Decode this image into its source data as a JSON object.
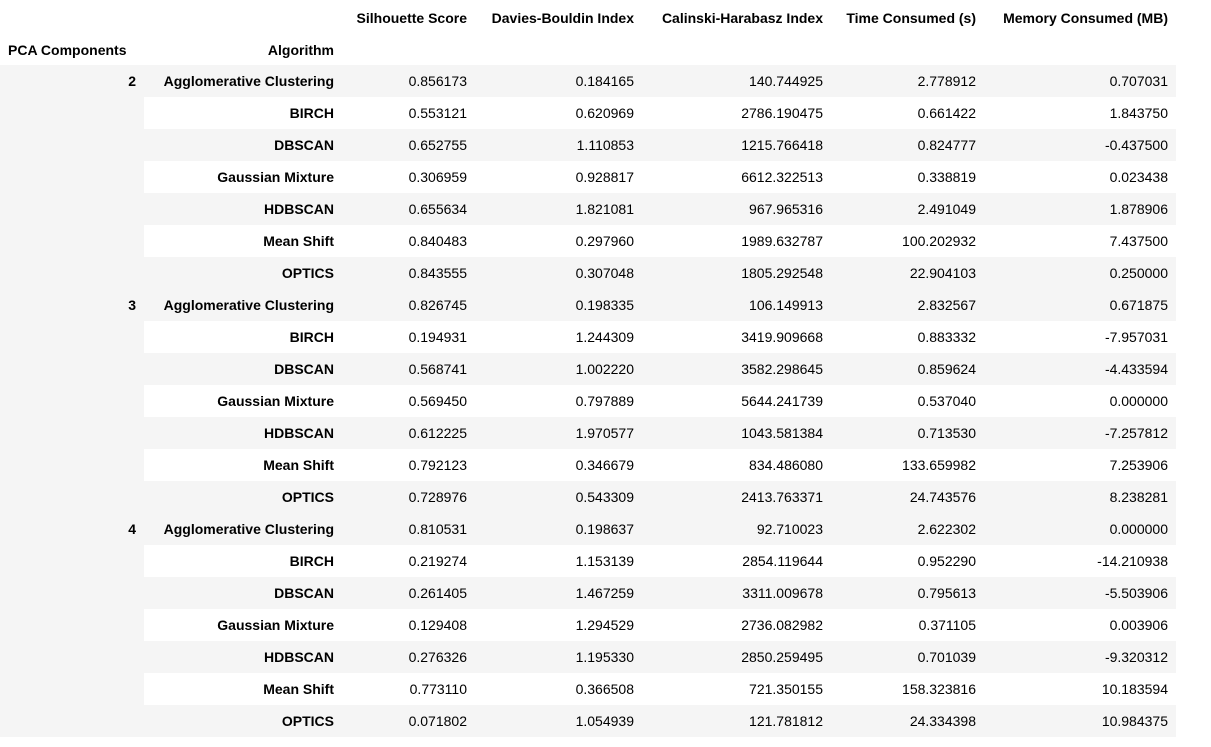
{
  "columns": [
    "Silhouette Score",
    "Davies-Bouldin Index",
    "Calinski-Harabasz Index",
    "Time Consumed (s)",
    "Memory Consumed (MB)"
  ],
  "index_names": {
    "level0": "PCA Components",
    "level1": "Algorithm"
  },
  "groups": [
    {
      "pca": "2",
      "rows": [
        {
          "algorithm": "Agglomerative Clustering",
          "values": [
            "0.856173",
            "0.184165",
            "140.744925",
            "2.778912",
            "0.707031"
          ]
        },
        {
          "algorithm": "BIRCH",
          "values": [
            "0.553121",
            "0.620969",
            "2786.190475",
            "0.661422",
            "1.843750"
          ]
        },
        {
          "algorithm": "DBSCAN",
          "values": [
            "0.652755",
            "1.110853",
            "1215.766418",
            "0.824777",
            "-0.437500"
          ]
        },
        {
          "algorithm": "Gaussian Mixture",
          "values": [
            "0.306959",
            "0.928817",
            "6612.322513",
            "0.338819",
            "0.023438"
          ]
        },
        {
          "algorithm": "HDBSCAN",
          "values": [
            "0.655634",
            "1.821081",
            "967.965316",
            "2.491049",
            "1.878906"
          ]
        },
        {
          "algorithm": "Mean Shift",
          "values": [
            "0.840483",
            "0.297960",
            "1989.632787",
            "100.202932",
            "7.437500"
          ]
        },
        {
          "algorithm": "OPTICS",
          "values": [
            "0.843555",
            "0.307048",
            "1805.292548",
            "22.904103",
            "0.250000"
          ]
        }
      ]
    },
    {
      "pca": "3",
      "rows": [
        {
          "algorithm": "Agglomerative Clustering",
          "values": [
            "0.826745",
            "0.198335",
            "106.149913",
            "2.832567",
            "0.671875"
          ]
        },
        {
          "algorithm": "BIRCH",
          "values": [
            "0.194931",
            "1.244309",
            "3419.909668",
            "0.883332",
            "-7.957031"
          ]
        },
        {
          "algorithm": "DBSCAN",
          "values": [
            "0.568741",
            "1.002220",
            "3582.298645",
            "0.859624",
            "-4.433594"
          ]
        },
        {
          "algorithm": "Gaussian Mixture",
          "values": [
            "0.569450",
            "0.797889",
            "5644.241739",
            "0.537040",
            "0.000000"
          ]
        },
        {
          "algorithm": "HDBSCAN",
          "values": [
            "0.612225",
            "1.970577",
            "1043.581384",
            "0.713530",
            "-7.257812"
          ]
        },
        {
          "algorithm": "Mean Shift",
          "values": [
            "0.792123",
            "0.346679",
            "834.486080",
            "133.659982",
            "7.253906"
          ]
        },
        {
          "algorithm": "OPTICS",
          "values": [
            "0.728976",
            "0.543309",
            "2413.763371",
            "24.743576",
            "8.238281"
          ]
        }
      ]
    },
    {
      "pca": "4",
      "rows": [
        {
          "algorithm": "Agglomerative Clustering",
          "values": [
            "0.810531",
            "0.198637",
            "92.710023",
            "2.622302",
            "0.000000"
          ]
        },
        {
          "algorithm": "BIRCH",
          "values": [
            "0.219274",
            "1.153139",
            "2854.119644",
            "0.952290",
            "-14.210938"
          ]
        },
        {
          "algorithm": "DBSCAN",
          "values": [
            "0.261405",
            "1.467259",
            "3311.009678",
            "0.795613",
            "-5.503906"
          ]
        },
        {
          "algorithm": "Gaussian Mixture",
          "values": [
            "0.129408",
            "1.294529",
            "2736.082982",
            "0.371105",
            "0.003906"
          ]
        },
        {
          "algorithm": "HDBSCAN",
          "values": [
            "0.276326",
            "1.195330",
            "2850.259495",
            "0.701039",
            "-9.320312"
          ]
        },
        {
          "algorithm": "Mean Shift",
          "values": [
            "0.773110",
            "0.366508",
            "721.350155",
            "158.323816",
            "10.183594"
          ]
        },
        {
          "algorithm": "OPTICS",
          "values": [
            "0.071802",
            "1.054939",
            "121.781812",
            "24.334398",
            "10.984375"
          ]
        }
      ]
    }
  ],
  "colors": {
    "row_stripe": "#f5f5f5",
    "background": "#ffffff",
    "header_rule": "#000000",
    "text": "#000000"
  }
}
